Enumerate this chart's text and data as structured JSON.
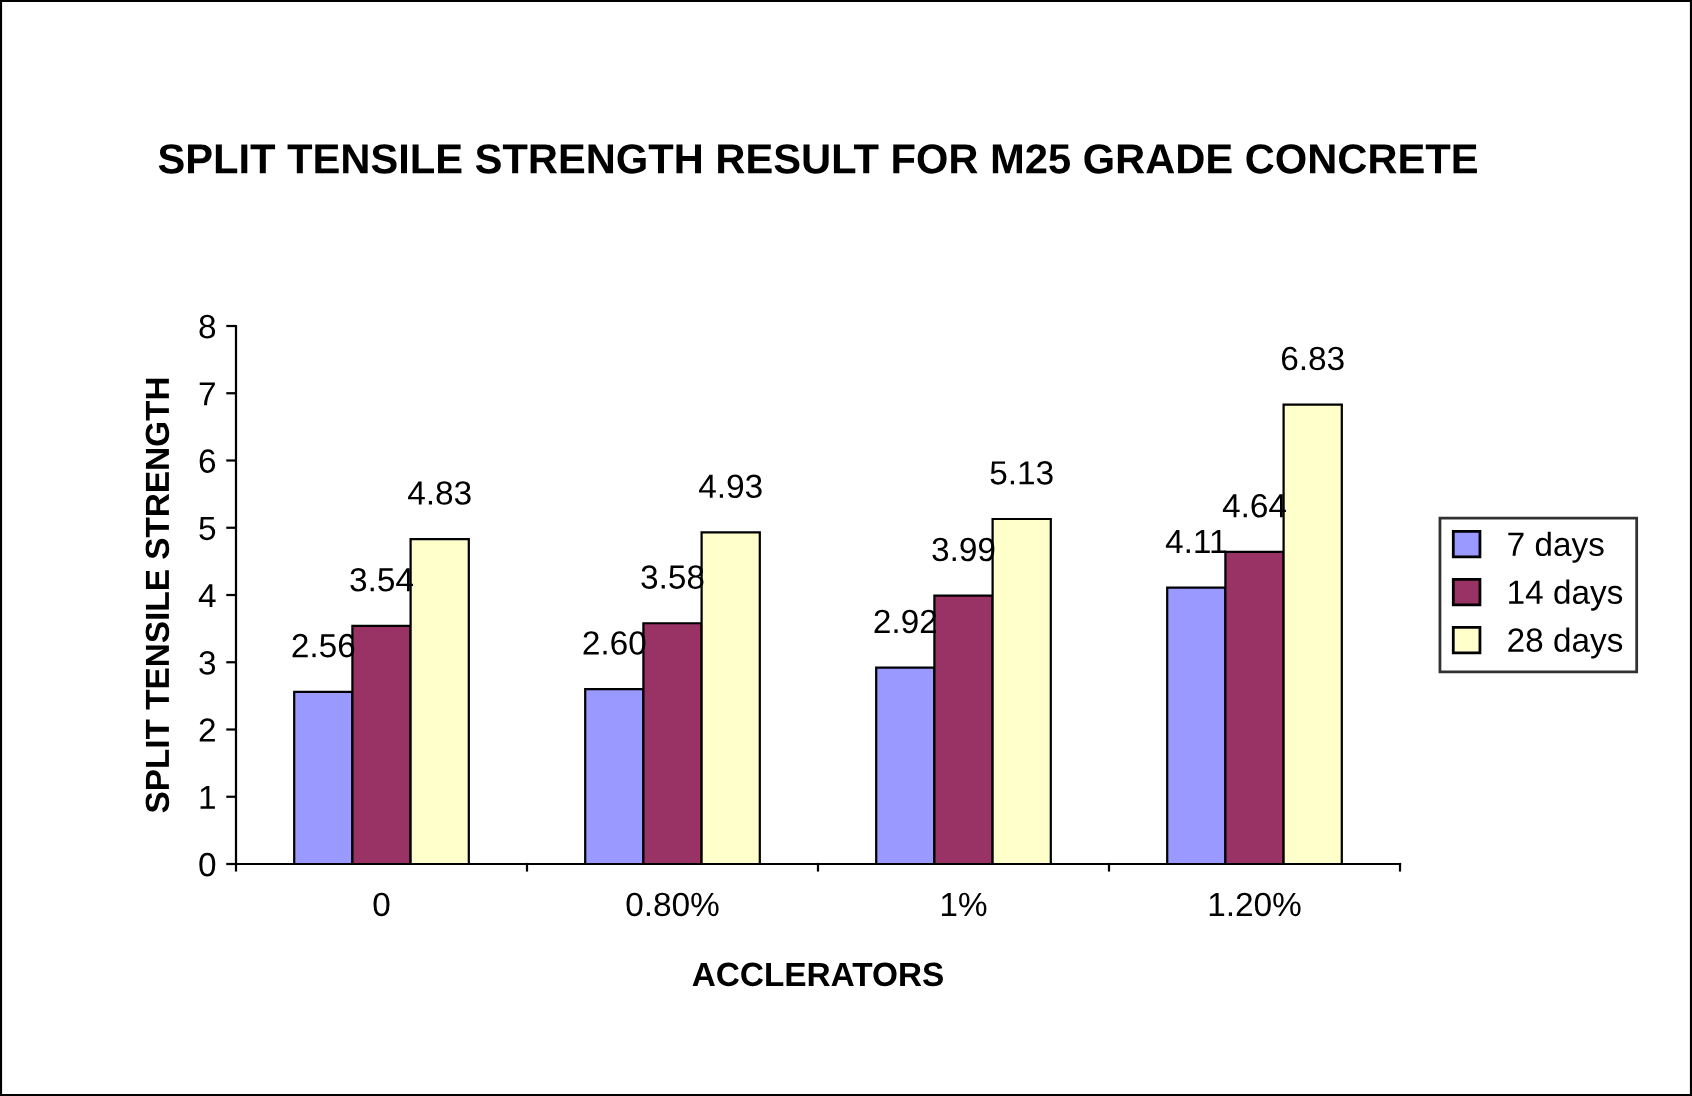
{
  "chart_data": {
    "type": "bar",
    "title": "SPLIT TENSILE STRENGTH RESULT FOR M25 GRADE CONCRETE",
    "xlabel": "ACCLERATORS",
    "ylabel": "SPLIT TENSILE STRENGTH",
    "categories": [
      "0",
      "0.80%",
      "1%",
      "1.20%"
    ],
    "series": [
      {
        "name": "7 days",
        "color": "#9999ff",
        "values": [
          2.56,
          2.6,
          2.92,
          4.11
        ],
        "value_labels": [
          "2.56",
          "2.60",
          "2.92",
          "4.11"
        ]
      },
      {
        "name": "14 days",
        "color": "#993366",
        "values": [
          3.54,
          3.58,
          3.99,
          4.64
        ],
        "value_labels": [
          "3.54",
          "3.58",
          "3.99",
          "4.64"
        ]
      },
      {
        "name": "28 days",
        "color": "#ffffcc",
        "values": [
          4.83,
          4.93,
          5.13,
          6.83
        ],
        "value_labels": [
          "4.83",
          "4.93",
          "5.13",
          "6.83"
        ]
      }
    ],
    "ylim": [
      0,
      8
    ],
    "yticks": [
      0,
      1,
      2,
      3,
      4,
      5,
      6,
      7,
      8
    ],
    "grid": false,
    "legend": "right"
  }
}
